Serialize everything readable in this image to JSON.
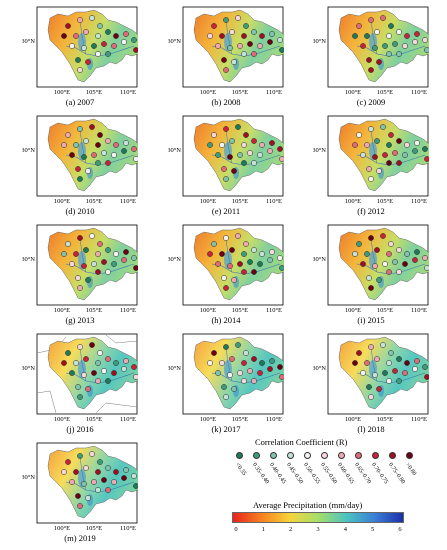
{
  "panels": [
    {
      "caption": "(a) 2007"
    },
    {
      "caption": "(b) 2008"
    },
    {
      "caption": "(c) 2009"
    },
    {
      "caption": "(d) 2010"
    },
    {
      "caption": "(e) 2011"
    },
    {
      "caption": "(f) 2012"
    },
    {
      "caption": "(g) 2013"
    },
    {
      "caption": "(h) 2014"
    },
    {
      "caption": "(i) 2015"
    },
    {
      "caption": "(j) 2016"
    },
    {
      "caption": "(k) 2017"
    },
    {
      "caption": "(l) 2018"
    },
    {
      "caption": "(m) 2019"
    }
  ],
  "axis": {
    "lat_label": "30°N",
    "lon_labels": [
      "100°E",
      "105°E",
      "110°E"
    ]
  },
  "legend": {
    "corr_title": "Correlation Coefficient (R)",
    "corr_classes": [
      {
        "label": "<0.35",
        "color": "#1f7a5a"
      },
      {
        "label": "0.35–0.40",
        "color": "#3f9b7d"
      },
      {
        "label": "0.40–0.45",
        "color": "#7fc3b0"
      },
      {
        "label": "0.45–0.50",
        "color": "#c5e3db"
      },
      {
        "label": "0.50–0.55",
        "color": "#f4f4f4"
      },
      {
        "label": "0.55–0.60",
        "color": "#f5d8dc"
      },
      {
        "label": "0.60–0.65",
        "color": "#eeaab4"
      },
      {
        "label": "0.65–0.70",
        "color": "#e06a7a"
      },
      {
        "label": "0.70–0.75",
        "color": "#c8233a"
      },
      {
        "label": "0.75–0.80",
        "color": "#9e1024"
      },
      {
        "label": ">0.80",
        "color": "#6b0014"
      }
    ],
    "precip_title": "Average Precipitation (mm/day)",
    "precip_ticks": [
      "0",
      "1",
      "2",
      "3",
      "4",
      "5",
      "6"
    ],
    "precip_colors": [
      "#e8231d",
      "#f7801e",
      "#f6d33a",
      "#a6df6a",
      "#4cc3c0",
      "#3a7fd6",
      "#1b2fa8"
    ]
  }
}
